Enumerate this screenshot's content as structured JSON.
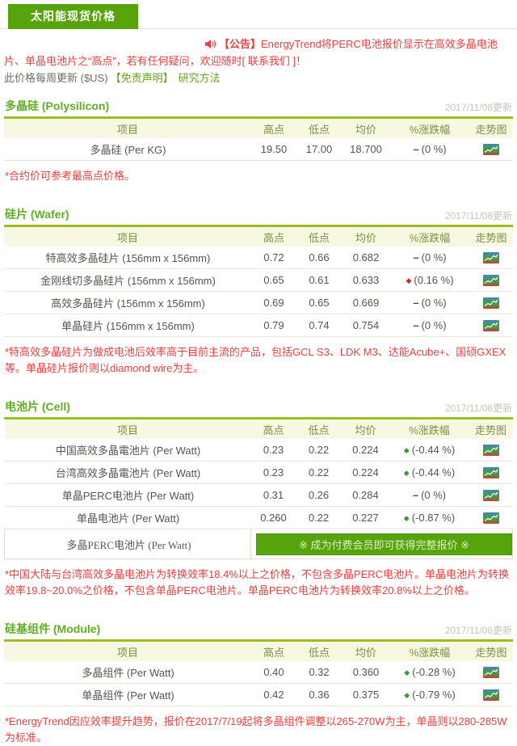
{
  "colors": {
    "brand_green": "#57a30b",
    "section_title_green": "#5fae24",
    "section_underline": "#9cbe23",
    "table_header_bg": "#f7f7e2",
    "table_header_text": "#7d8f42",
    "announcement_red": "#e84040",
    "link_green": "#67a41a",
    "change_up_red": "#cc2626",
    "change_down_green": "#3a9a3a",
    "date_gray": "#c6c6ba"
  },
  "page": {
    "tab_title": "太阳能现货价格",
    "announcement": {
      "icon": "megaphone-icon",
      "prefix": "【公告】",
      "body": "EnergyTrend将PERC电池报价显示在高效多晶电池片、单晶电池片之“高点”，若有任何疑问，欢迎随时",
      "contact_link": "[ 联系我们 ]",
      "suffix": "！"
    },
    "update_note": {
      "text": "此价格每周更新 ($US)",
      "disclaimer_link": "【免责声明】",
      "method_link": "研究方法"
    }
  },
  "table_columns": [
    "项目",
    "高点",
    "低点",
    "均价",
    "%涨跌幅",
    "走势图"
  ],
  "markers": {
    "flat": "–",
    "up": "◆",
    "down": "◆"
  },
  "trend_icon_name": "trend-chart-icon",
  "sections": [
    {
      "title": "多晶硅 (Polysilicon)",
      "updated": "2017/11/08更新",
      "rows": [
        {
          "item": "多晶硅 (Per KG)",
          "high": "19.50",
          "low": "17.00",
          "avg": "18.700",
          "change_dir": "flat",
          "change": "(0 %)"
        }
      ],
      "footnote": "*合约价可参考最高点价格。"
    },
    {
      "title": "硅片 (Wafer)",
      "updated": "2017/11/08更新",
      "rows": [
        {
          "item": "特高效多晶硅片 (156mm x 156mm)",
          "high": "0.72",
          "low": "0.66",
          "avg": "0.682",
          "change_dir": "flat",
          "change": "(0 %)"
        },
        {
          "item": "金刚线切多晶硅片 (156mm x 156mm)",
          "high": "0.65",
          "low": "0.61",
          "avg": "0.633",
          "change_dir": "up",
          "change": "(0.16 %)"
        },
        {
          "item": "高效多晶硅片 (156mm x 156mm)",
          "high": "0.69",
          "low": "0.65",
          "avg": "0.669",
          "change_dir": "flat",
          "change": "(0 %)"
        },
        {
          "item": "单晶硅片 (156mm x 156mm)",
          "high": "0.79",
          "low": "0.74",
          "avg": "0.754",
          "change_dir": "flat",
          "change": "(0 %)"
        }
      ],
      "footnote": "*特高效多晶硅片为做成电池后效率高于目前主流的产品，包括GCL S3、LDK M3、达能Acube+、国硕GXEX等。单晶硅片报价则以diamond wire为主。"
    },
    {
      "title": "电池片 (Cell)",
      "updated": "2017/11/08更新",
      "rows": [
        {
          "item": "中国高效多晶電池片 (Per Watt)",
          "high": "0.23",
          "low": "0.22",
          "avg": "0.224",
          "change_dir": "down",
          "change": "(-0.44 %)"
        },
        {
          "item": "台湾高效多晶電池片 (Per Watt)",
          "high": "0.23",
          "low": "0.22",
          "avg": "0.224",
          "change_dir": "down",
          "change": "(-0.44 %)"
        },
        {
          "item": "单晶PERC电池片 (Per Watt)",
          "high": "0.31",
          "low": "0.26",
          "avg": "0.284",
          "change_dir": "flat",
          "change": "(0 %)"
        },
        {
          "item": "单晶电池片 (Per Watt)",
          "high": "0.260",
          "low": "0.22",
          "avg": "0.227",
          "change_dir": "down",
          "change": "(-0.87 %)"
        }
      ],
      "member_row": {
        "item": "多晶PERC电池片 (Per Watt)",
        "button_label": "※ 成为付费会员即可获得完整报价 ※"
      },
      "footnote": "*中国大陆与台湾高效多晶电池片为转换效率18.4%以上之价格，不包含多晶PERC电池片。单晶电池片为转换效率19.8~20.0%之价格，不包含单晶PERC电池片。单晶PERC电池片为转换效率20.8%以上之价格。"
    },
    {
      "title": "硅基组件 (Module)",
      "updated": "2017/11/08更新",
      "rows": [
        {
          "item": "多晶组件 (Per Watt)",
          "high": "0.40",
          "low": "0.32",
          "avg": "0.360",
          "change_dir": "down",
          "change": "(-0.28 %)"
        },
        {
          "item": "单晶组件 (Per Watt)",
          "high": "0.42",
          "low": "0.36",
          "avg": "0.375",
          "change_dir": "down",
          "change": "(-0.79 %)"
        }
      ],
      "footnote": "*EnergyTrend因应效率提升趋势，报价在2017/7/19起将多晶组件调整以265-270W为主，单晶则以280-285W为标准。"
    }
  ]
}
